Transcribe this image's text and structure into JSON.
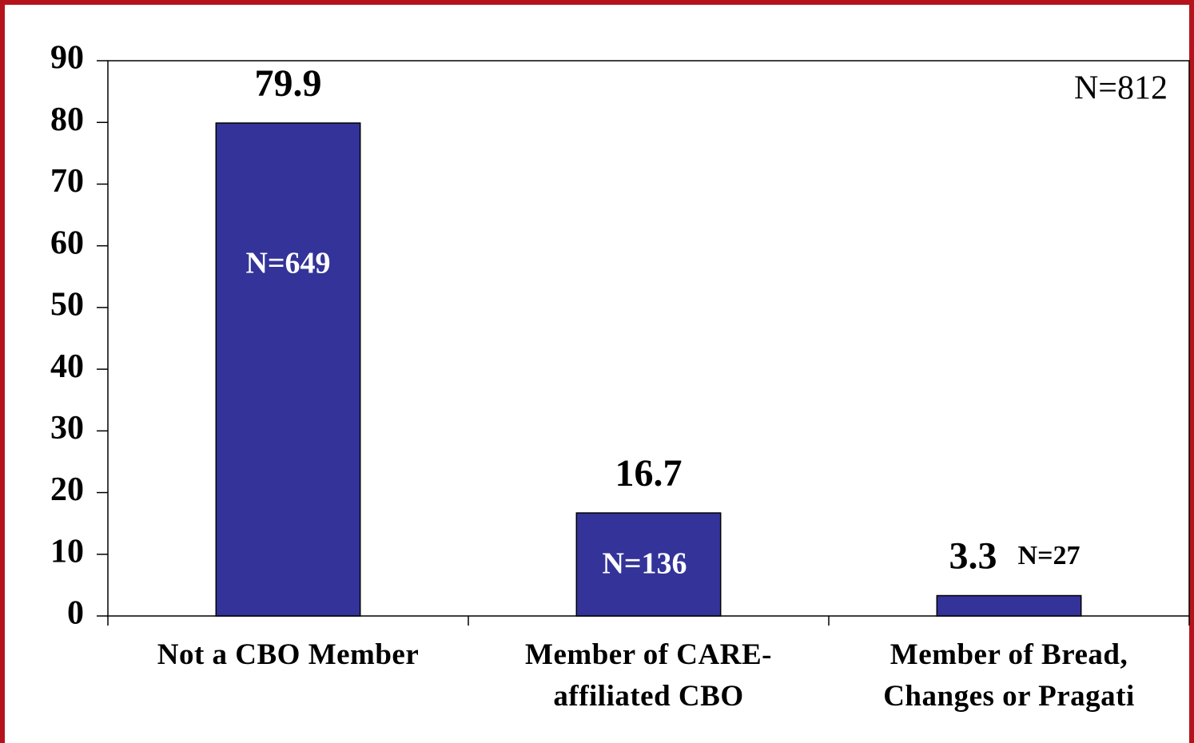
{
  "chart_data": {
    "type": "bar",
    "categories": [
      "Not a CBO Member",
      "Member of CARE-\naffiliated CBO",
      "Member of Bread,\nChanges or Pragati"
    ],
    "values": [
      79.9,
      16.7,
      3.3
    ],
    "bar_labels": [
      "N=649",
      "N=136",
      "N=27"
    ],
    "annotation": "N=812",
    "color": "#333399",
    "ylim": [
      0,
      90
    ],
    "yticks": [
      0,
      10,
      20,
      30,
      40,
      50,
      60,
      70,
      80,
      90
    ],
    "grid": false
  }
}
